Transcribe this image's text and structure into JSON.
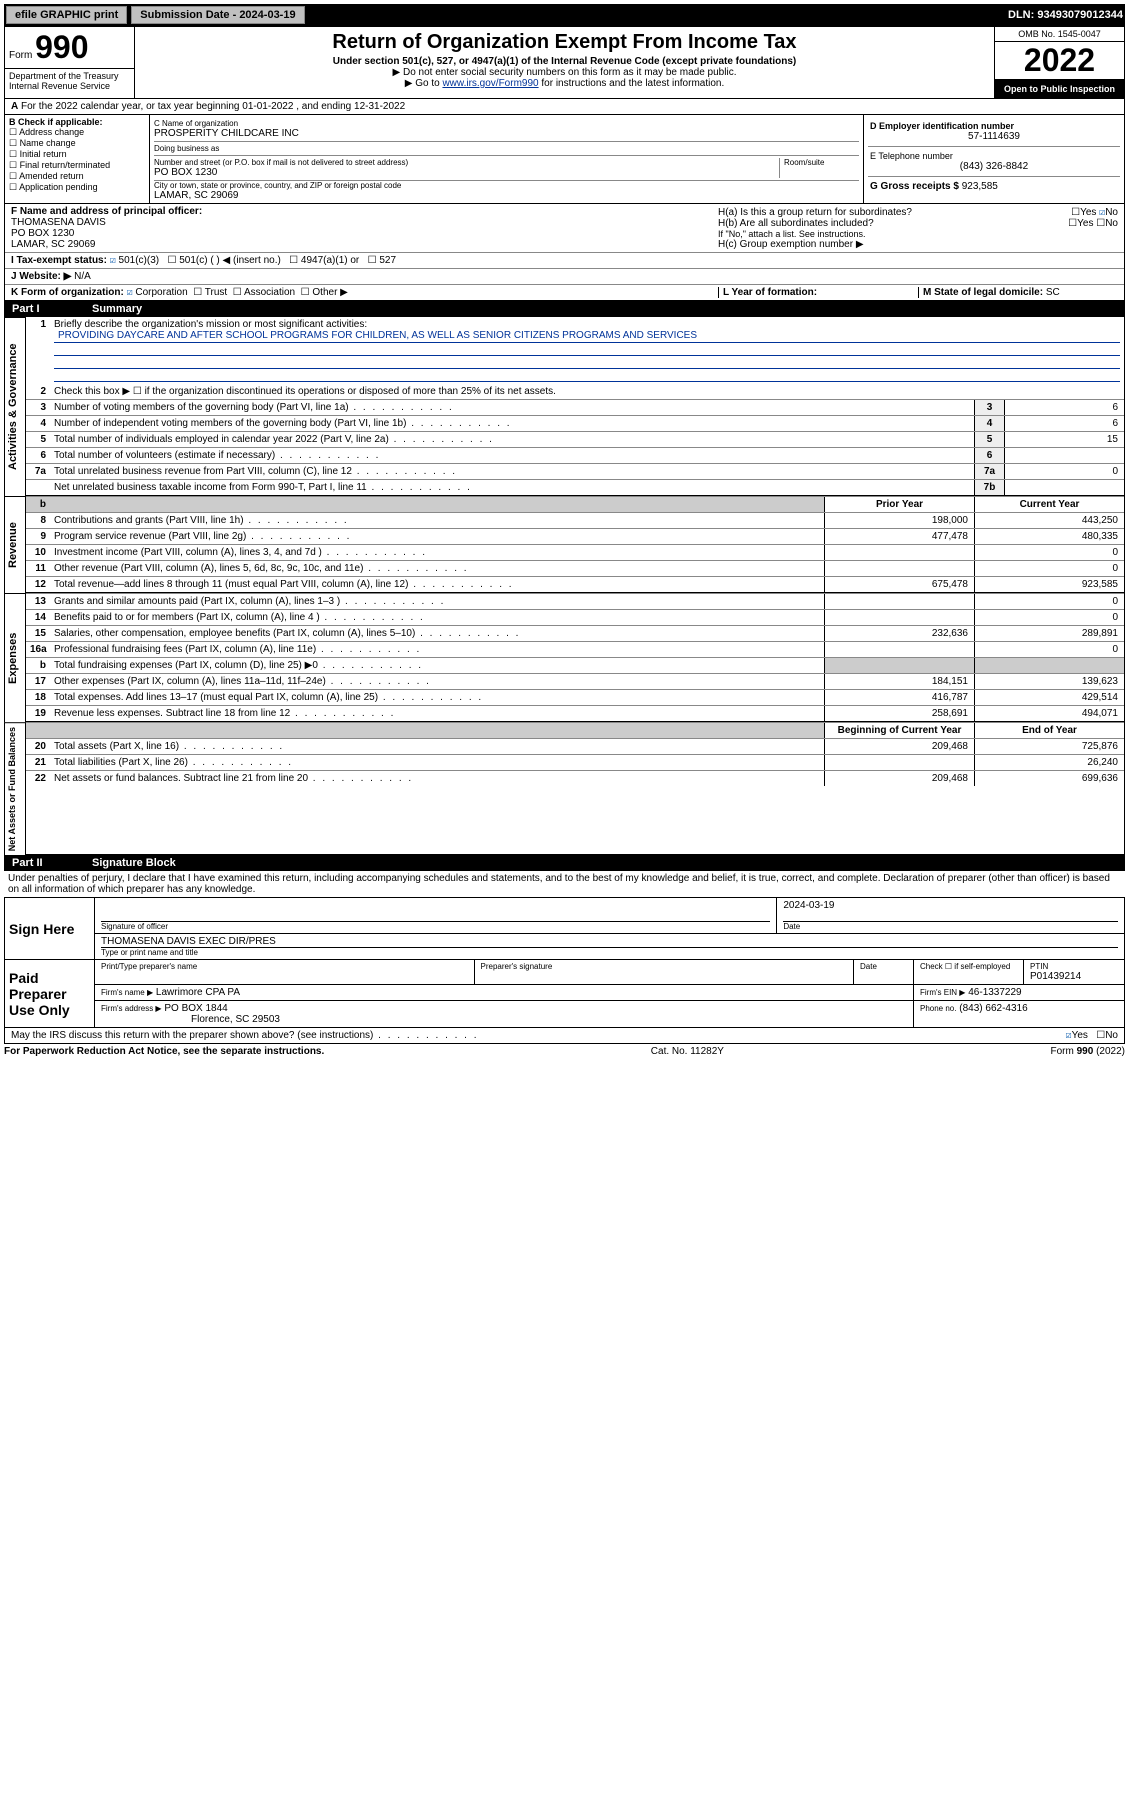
{
  "topbar": {
    "efile": "efile GRAPHIC print",
    "submission_label": "Submission Date - 2024-03-19",
    "dln": "DLN: 93493079012344"
  },
  "header": {
    "form_label": "Form",
    "form_number": "990",
    "title": "Return of Organization Exempt From Income Tax",
    "subtitle": "Under section 501(c), 527, or 4947(a)(1) of the Internal Revenue Code (except private foundations)",
    "note1": "▶ Do not enter social security numbers on this form as it may be made public.",
    "note2_prefix": "▶ Go to ",
    "note2_link": "www.irs.gov/Form990",
    "note2_suffix": " for instructions and the latest information.",
    "dept": "Department of the Treasury\nInternal Revenue Service",
    "omb": "OMB No. 1545-0047",
    "year": "2022",
    "open": "Open to Public Inspection"
  },
  "sectionA": "For the 2022 calendar year, or tax year beginning 01-01-2022    , and ending 12-31-2022",
  "boxB": {
    "label": "B Check if applicable:",
    "items": [
      "Address change",
      "Name change",
      "Initial return",
      "Final return/terminated",
      "Amended return",
      "Application pending"
    ]
  },
  "boxC": {
    "name_label": "C Name of organization",
    "name": "PROSPERITY CHILDCARE INC",
    "dba_label": "Doing business as",
    "dba": "",
    "street_label": "Number and street (or P.O. box if mail is not delivered to street address)",
    "room_label": "Room/suite",
    "street": "PO BOX 1230",
    "city_label": "City or town, state or province, country, and ZIP or foreign postal code",
    "city": "LAMAR, SC  29069"
  },
  "boxD": {
    "label": "D Employer identification number",
    "value": "57-1114639"
  },
  "boxE": {
    "label": "E Telephone number",
    "value": "(843) 326-8842"
  },
  "boxG": {
    "label": "G Gross receipts $",
    "value": "923,585"
  },
  "boxF": {
    "label": "F Name and address of principal officer:",
    "name": "THOMASENA DAVIS",
    "addr1": "PO BOX 1230",
    "addr2": "LAMAR, SC  29069"
  },
  "boxH": {
    "a": "H(a)  Is this a group return for subordinates?",
    "a_yes": "Yes",
    "a_no": "No",
    "b": "H(b)  Are all subordinates included?",
    "b_yes": "Yes",
    "b_no": "No",
    "note": "If \"No,\" attach a list. See instructions.",
    "c": "H(c)  Group exemption number ▶"
  },
  "lineI": {
    "label": "I  Tax-exempt status:",
    "opts": [
      "501(c)(3)",
      "501(c) (  ) ◀ (insert no.)",
      "4947(a)(1) or",
      "527"
    ]
  },
  "lineJ": {
    "label": "J  Website: ▶",
    "value": "N/A"
  },
  "lineK": {
    "label": "K Form of organization:",
    "opts": [
      "Corporation",
      "Trust",
      "Association",
      "Other ▶"
    ]
  },
  "lineL": {
    "label": "L Year of formation:",
    "value": ""
  },
  "lineM": {
    "label": "M State of legal domicile:",
    "value": "SC"
  },
  "partI": {
    "header_num": "Part I",
    "header_title": "Summary",
    "line1_label": "Briefly describe the organization's mission or most significant activities:",
    "line1_text": "PROVIDING DAYCARE AND AFTER SCHOOL PROGRAMS FOR CHILDREN, AS WELL AS SENIOR CITIZENS PROGRAMS AND SERVICES",
    "line2": "Check this box ▶ ☐  if the organization discontinued its operations or disposed of more than 25% of its net assets.",
    "rows_gov": [
      {
        "n": "3",
        "d": "Number of voting members of the governing body (Part VI, line 1a)",
        "box": "3",
        "v": "6"
      },
      {
        "n": "4",
        "d": "Number of independent voting members of the governing body (Part VI, line 1b)",
        "box": "4",
        "v": "6"
      },
      {
        "n": "5",
        "d": "Total number of individuals employed in calendar year 2022 (Part V, line 2a)",
        "box": "5",
        "v": "15"
      },
      {
        "n": "6",
        "d": "Total number of volunteers (estimate if necessary)",
        "box": "6",
        "v": ""
      },
      {
        "n": "7a",
        "d": "Total unrelated business revenue from Part VIII, column (C), line 12",
        "box": "7a",
        "v": "0"
      },
      {
        "n": "",
        "d": "Net unrelated business taxable income from Form 990-T, Part I, line 11",
        "box": "7b",
        "v": ""
      }
    ],
    "col_head_prior": "Prior Year",
    "col_head_current": "Current Year",
    "rows_rev": [
      {
        "n": "8",
        "d": "Contributions and grants (Part VIII, line 1h)",
        "p": "198,000",
        "c": "443,250"
      },
      {
        "n": "9",
        "d": "Program service revenue (Part VIII, line 2g)",
        "p": "477,478",
        "c": "480,335"
      },
      {
        "n": "10",
        "d": "Investment income (Part VIII, column (A), lines 3, 4, and 7d )",
        "p": "",
        "c": "0"
      },
      {
        "n": "11",
        "d": "Other revenue (Part VIII, column (A), lines 5, 6d, 8c, 9c, 10c, and 11e)",
        "p": "",
        "c": "0"
      },
      {
        "n": "12",
        "d": "Total revenue—add lines 8 through 11 (must equal Part VIII, column (A), line 12)",
        "p": "675,478",
        "c": "923,585"
      }
    ],
    "rows_exp": [
      {
        "n": "13",
        "d": "Grants and similar amounts paid (Part IX, column (A), lines 1–3 )",
        "p": "",
        "c": "0"
      },
      {
        "n": "14",
        "d": "Benefits paid to or for members (Part IX, column (A), line 4 )",
        "p": "",
        "c": "0"
      },
      {
        "n": "15",
        "d": "Salaries, other compensation, employee benefits (Part IX, column (A), lines 5–10)",
        "p": "232,636",
        "c": "289,891"
      },
      {
        "n": "16a",
        "d": "Professional fundraising fees (Part IX, column (A), line 11e)",
        "p": "",
        "c": "0"
      },
      {
        "n": "b",
        "d": "Total fundraising expenses (Part IX, column (D), line 25) ▶0",
        "p": "GRAY",
        "c": "GRAY"
      },
      {
        "n": "17",
        "d": "Other expenses (Part IX, column (A), lines 11a–11d, 11f–24e)",
        "p": "184,151",
        "c": "139,623"
      },
      {
        "n": "18",
        "d": "Total expenses. Add lines 13–17 (must equal Part IX, column (A), line 25)",
        "p": "416,787",
        "c": "429,514"
      },
      {
        "n": "19",
        "d": "Revenue less expenses. Subtract line 18 from line 12",
        "p": "258,691",
        "c": "494,071"
      }
    ],
    "col_head_begin": "Beginning of Current Year",
    "col_head_end": "End of Year",
    "rows_net": [
      {
        "n": "20",
        "d": "Total assets (Part X, line 16)",
        "p": "209,468",
        "c": "725,876"
      },
      {
        "n": "21",
        "d": "Total liabilities (Part X, line 26)",
        "p": "",
        "c": "26,240"
      },
      {
        "n": "22",
        "d": "Net assets or fund balances. Subtract line 21 from line 20",
        "p": "209,468",
        "c": "699,636"
      }
    ],
    "vlabels": {
      "gov": "Activities & Governance",
      "rev": "Revenue",
      "exp": "Expenses",
      "net": "Net Assets or Fund Balances"
    }
  },
  "partII": {
    "header_num": "Part II",
    "header_title": "Signature Block",
    "declaration": "Under penalties of perjury, I declare that I have examined this return, including accompanying schedules and statements, and to the best of my knowledge and belief, it is true, correct, and complete. Declaration of preparer (other than officer) is based on all information of which preparer has any knowledge.",
    "sign_here": "Sign Here",
    "sig_officer_label": "Signature of officer",
    "sig_date": "2024-03-19",
    "date_label": "Date",
    "officer_name": "THOMASENA DAVIS EXEC DIR/PRES",
    "officer_name_label": "Type or print name and title",
    "paid_prep": "Paid Preparer Use Only",
    "prep_name_label": "Print/Type preparer's name",
    "prep_sig_label": "Preparer's signature",
    "prep_date_label": "Date",
    "check_self": "Check ☐ if self-employed",
    "ptin_label": "PTIN",
    "ptin": "P01439214",
    "firm_name_label": "Firm's name     ▶",
    "firm_name": "Lawrimore CPA PA",
    "firm_ein_label": "Firm's EIN ▶",
    "firm_ein": "46-1337229",
    "firm_addr_label": "Firm's address ▶",
    "firm_addr1": "PO BOX 1844",
    "firm_addr2": "Florence, SC  29503",
    "phone_label": "Phone no.",
    "phone": "(843) 662-4316",
    "discuss": "May the IRS discuss this return with the preparer shown above? (see instructions)",
    "discuss_yes": "Yes",
    "discuss_no": "No"
  },
  "footer": {
    "left": "For Paperwork Reduction Act Notice, see the separate instructions.",
    "center": "Cat. No. 11282Y",
    "right": "Form 990 (2022)"
  }
}
